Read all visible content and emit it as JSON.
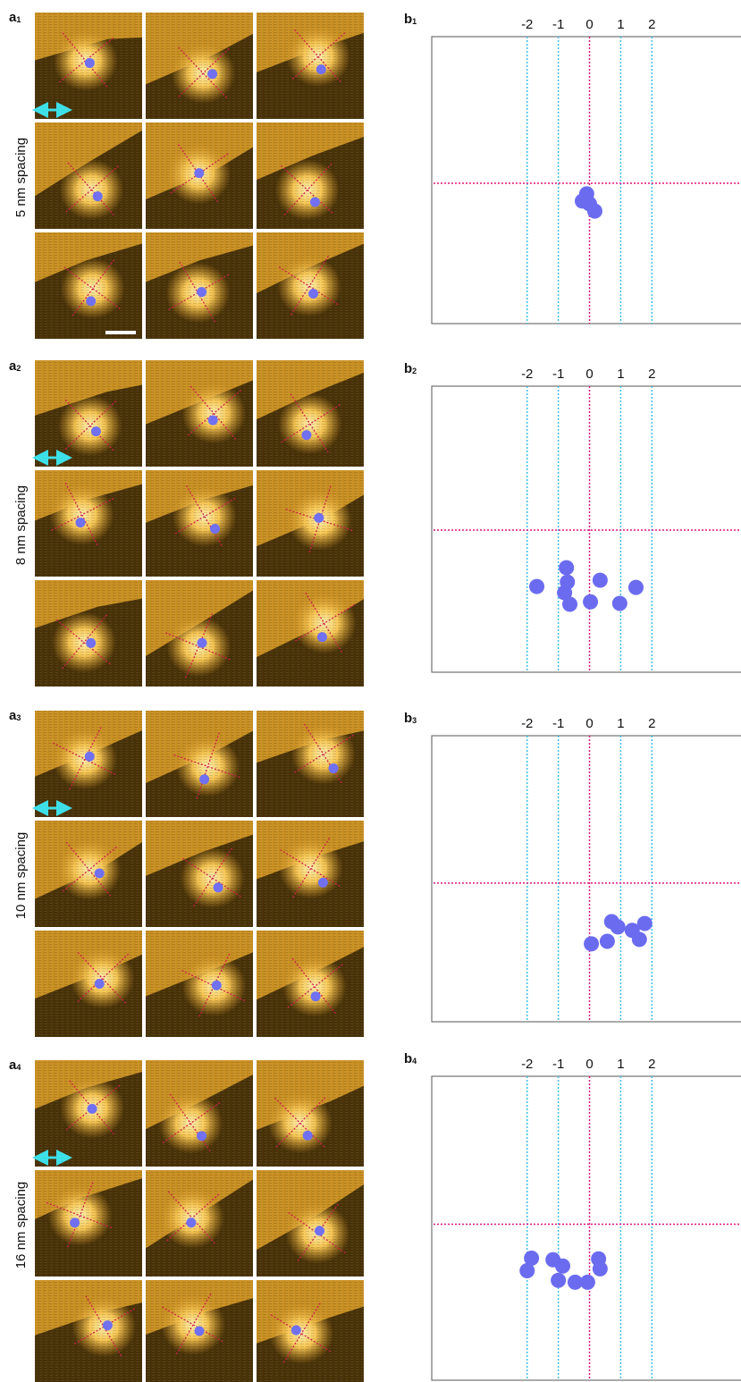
{
  "panels": [
    {
      "label": "a",
      "label_sub": "1",
      "spacing": "5 nm spacing"
    },
    {
      "label": "a",
      "label_sub": "2",
      "spacing": "8 nm spacing"
    },
    {
      "label": "a",
      "label_sub": "3",
      "spacing": "10 nm spacing"
    },
    {
      "label": "a",
      "label_sub": "4",
      "spacing": "16 nm spacing"
    }
  ],
  "chart_data": [
    {
      "type": "scatter",
      "label": "b",
      "label_sub": "1",
      "x": [
        -0.09,
        -0.23,
        0,
        0.17,
        -0.11
      ],
      "values": [
        -0.34,
        -0.57,
        -0.66,
        -0.89,
        -0.49
      ],
      "color": "#6b6bf0",
      "xlim": [
        -5.06,
        4.83
      ],
      "ylim": [
        -4.49,
        4.69
      ],
      "xticks": [
        -2,
        -1,
        0,
        1,
        2
      ],
      "grid": true,
      "grid_color": "#3cc0e8",
      "zero_line_color": "#e0147c"
    },
    {
      "type": "scatter",
      "label": "b",
      "label_sub": "2",
      "x": [
        -1.69,
        -0.74,
        -0.71,
        -0.8,
        -0.63,
        0.03,
        0.34,
        0.97,
        1.49
      ],
      "values": [
        -1.8,
        -1.2,
        -1.66,
        -2.0,
        -2.37,
        -2.29,
        -1.6,
        -2.34,
        -1.83
      ],
      "color": "#6b6bf0",
      "xlim": [
        -5.06,
        4.83
      ],
      "ylim": [
        -4.54,
        4.6
      ],
      "xticks": [
        -2,
        -1,
        0,
        1,
        2
      ],
      "grid": true,
      "grid_color": "#3cc0e8",
      "zero_line_color": "#e0147c"
    },
    {
      "type": "scatter",
      "label": "b",
      "label_sub": "3",
      "x": [
        0.06,
        0.57,
        0.71,
        0.91,
        1.37,
        1.6,
        1.77
      ],
      "values": [
        -1.94,
        -1.86,
        -1.23,
        -1.4,
        -1.51,
        -1.8,
        -1.29
      ],
      "color": "#6b6bf0",
      "xlim": [
        -5.06,
        4.83
      ],
      "ylim": [
        -4.43,
        4.71
      ],
      "xticks": [
        -2,
        -1,
        0,
        1,
        2
      ],
      "grid": true,
      "grid_color": "#3cc0e8",
      "zero_line_color": "#e0147c"
    },
    {
      "type": "scatter",
      "label": "b",
      "label_sub": "4",
      "x": [
        -2,
        -1.86,
        -1.17,
        -0.86,
        -1,
        -0.46,
        -0.06,
        0.29,
        0.34
      ],
      "values": [
        -1.49,
        -1.09,
        -1.14,
        -1.34,
        -1.8,
        -1.86,
        -1.86,
        -1.11,
        -1.43
      ],
      "color": "#6b6bf0",
      "xlim": [
        -5.06,
        4.83
      ],
      "ylim": [
        -5.0,
        4.74
      ],
      "xticks": [
        -2,
        -1,
        0,
        1,
        2
      ],
      "grid": true,
      "grid_color": "#3cc0e8",
      "zero_line_color": "#e0147c"
    }
  ]
}
